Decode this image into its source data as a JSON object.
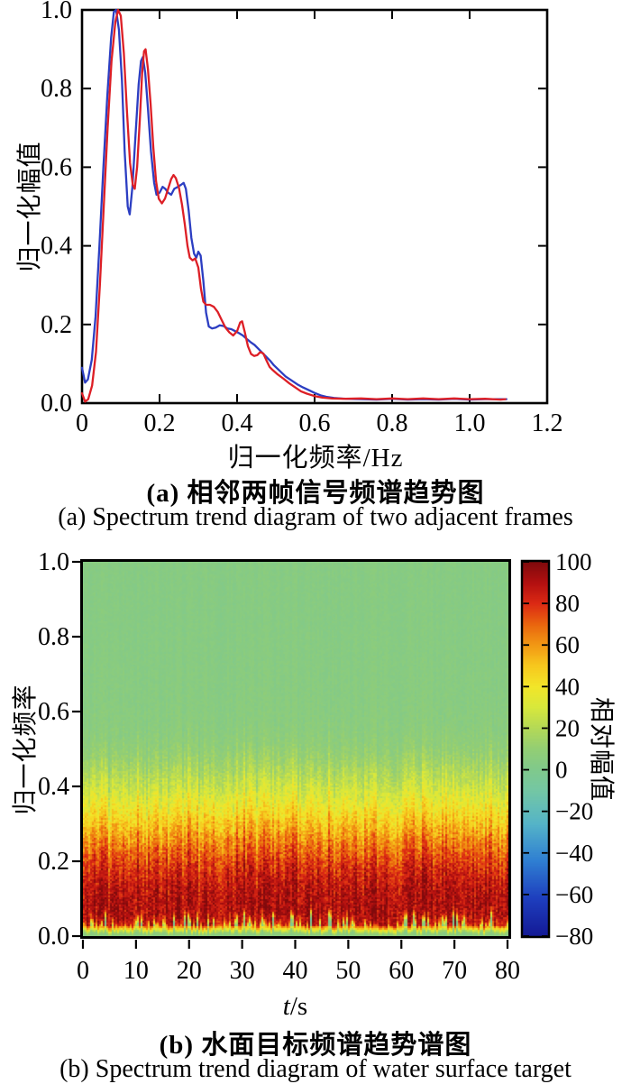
{
  "figure": {
    "background": "#ffffff",
    "caption_a_zh": "(a) 相邻两帧信号频谱趋势图",
    "caption_a_en": "(a) Spectrum trend diagram of two adjacent frames",
    "caption_b_zh": "(b) 水面目标频谱趋势谱图",
    "caption_b_en": "(b) Spectrum trend diagram of water surface target"
  },
  "chart_data": [
    {
      "id": "spectrum-trend-lines",
      "type": "line",
      "xlabel": "归一化频率/Hz",
      "ylabel": "归一化幅值",
      "xlim": [
        0,
        1.2
      ],
      "ylim": [
        0,
        1.0
      ],
      "grid": false,
      "xticks": [
        "0",
        "0.2",
        "0.4",
        "0.6",
        "0.8",
        "1.0",
        "1.2"
      ],
      "yticks": [
        "0.0",
        "0.2",
        "0.4",
        "0.6",
        "0.8",
        "1.0"
      ],
      "caption_zh": "(a) 相邻两帧信号频谱趋势图",
      "caption_en": "(a) Spectrum trend diagram of two adjacent frames",
      "series": [
        {
          "name": "frame-1-blue",
          "color": "#2c3ec2",
          "x": [
            0,
            0.008,
            0.015,
            0.025,
            0.035,
            0.045,
            0.055,
            0.065,
            0.075,
            0.082,
            0.088,
            0.095,
            0.103,
            0.11,
            0.118,
            0.123,
            0.13,
            0.138,
            0.146,
            0.152,
            0.157,
            0.163,
            0.17,
            0.178,
            0.186,
            0.192,
            0.2,
            0.208,
            0.215,
            0.222,
            0.23,
            0.238,
            0.247,
            0.255,
            0.262,
            0.268,
            0.275,
            0.282,
            0.289,
            0.295,
            0.3,
            0.306,
            0.313,
            0.32,
            0.327,
            0.335,
            0.345,
            0.355,
            0.365,
            0.375,
            0.385,
            0.395,
            0.405,
            0.415,
            0.425,
            0.435,
            0.445,
            0.455,
            0.465,
            0.475,
            0.485,
            0.495,
            0.51,
            0.525,
            0.54,
            0.555,
            0.57,
            0.585,
            0.6,
            0.615,
            0.63,
            0.65,
            0.68,
            0.72,
            0.76,
            0.8,
            0.84,
            0.88,
            0.92,
            0.96,
            1.0,
            1.04,
            1.08,
            1.095
          ],
          "y": [
            0.09,
            0.052,
            0.06,
            0.11,
            0.22,
            0.4,
            0.6,
            0.78,
            0.93,
            0.995,
            1.0,
            0.95,
            0.82,
            0.64,
            0.5,
            0.48,
            0.55,
            0.68,
            0.81,
            0.87,
            0.88,
            0.84,
            0.75,
            0.64,
            0.56,
            0.53,
            0.535,
            0.55,
            0.545,
            0.535,
            0.53,
            0.545,
            0.55,
            0.555,
            0.56,
            0.545,
            0.49,
            0.42,
            0.38,
            0.37,
            0.385,
            0.375,
            0.31,
            0.23,
            0.195,
            0.19,
            0.192,
            0.198,
            0.196,
            0.19,
            0.188,
            0.183,
            0.178,
            0.172,
            0.163,
            0.155,
            0.148,
            0.138,
            0.128,
            0.118,
            0.108,
            0.096,
            0.082,
            0.068,
            0.058,
            0.048,
            0.04,
            0.033,
            0.026,
            0.02,
            0.016,
            0.013,
            0.011,
            0.01,
            0.009,
            0.011,
            0.009,
            0.01,
            0.009,
            0.011,
            0.009,
            0.01,
            0.01,
            0.01
          ]
        },
        {
          "name": "frame-2-red",
          "color": "#dd1f26",
          "x": [
            0,
            0.008,
            0.016,
            0.026,
            0.036,
            0.046,
            0.056,
            0.066,
            0.076,
            0.086,
            0.093,
            0.1,
            0.108,
            0.116,
            0.124,
            0.131,
            0.136,
            0.142,
            0.149,
            0.155,
            0.16,
            0.164,
            0.17,
            0.177,
            0.184,
            0.191,
            0.198,
            0.206,
            0.214,
            0.222,
            0.23,
            0.236,
            0.242,
            0.25,
            0.258,
            0.265,
            0.272,
            0.278,
            0.285,
            0.292,
            0.3,
            0.307,
            0.313,
            0.32,
            0.33,
            0.34,
            0.35,
            0.36,
            0.37,
            0.38,
            0.39,
            0.4,
            0.408,
            0.413,
            0.42,
            0.428,
            0.436,
            0.444,
            0.452,
            0.46,
            0.468,
            0.476,
            0.484,
            0.492,
            0.505,
            0.52,
            0.535,
            0.55,
            0.565,
            0.58,
            0.6,
            0.62,
            0.645,
            0.68,
            0.72,
            0.76,
            0.8,
            0.84,
            0.88,
            0.92,
            0.96,
            1.0,
            1.04,
            1.08,
            1.092
          ],
          "y": [
            0.025,
            0.004,
            0.01,
            0.045,
            0.13,
            0.3,
            0.5,
            0.7,
            0.87,
            0.97,
            1.0,
            0.985,
            0.89,
            0.74,
            0.61,
            0.555,
            0.545,
            0.6,
            0.72,
            0.84,
            0.895,
            0.9,
            0.85,
            0.76,
            0.65,
            0.565,
            0.52,
            0.508,
            0.52,
            0.545,
            0.57,
            0.58,
            0.572,
            0.548,
            0.505,
            0.455,
            0.4,
            0.37,
            0.363,
            0.368,
            0.345,
            0.29,
            0.258,
            0.25,
            0.25,
            0.245,
            0.232,
            0.212,
            0.192,
            0.18,
            0.172,
            0.183,
            0.205,
            0.208,
            0.18,
            0.145,
            0.125,
            0.12,
            0.122,
            0.13,
            0.126,
            0.108,
            0.092,
            0.084,
            0.073,
            0.062,
            0.05,
            0.04,
            0.03,
            0.024,
            0.018,
            0.014,
            0.012,
            0.011,
            0.012,
            0.01,
            0.012,
            0.01,
            0.012,
            0.01,
            0.012,
            0.01,
            0.011,
            0.009,
            0.01
          ]
        }
      ]
    },
    {
      "id": "water-surface-spectrogram",
      "type": "heatmap",
      "xlabel": "t/s",
      "xlabel_italic": "t",
      "xlabel_rest": "/s",
      "ylabel": "归一化频率",
      "xlim": [
        0,
        80
      ],
      "ylim": [
        0,
        1.0
      ],
      "xticks": [
        "0",
        "10",
        "20",
        "30",
        "40",
        "50",
        "60",
        "70",
        "80"
      ],
      "yticks": [
        "0.0",
        "0.2",
        "0.4",
        "0.6",
        "0.8",
        "1.0"
      ],
      "caption_zh": "(b) 水面目标频谱趋势谱图",
      "caption_en": "(b) Spectrum trend diagram of water surface target",
      "colorbar": {
        "label": "相对幅值",
        "range": [
          -80,
          100
        ],
        "ticks": [
          "100",
          "80",
          "60",
          "40",
          "20",
          "0",
          "−20",
          "−40",
          "−60",
          "−80"
        ]
      },
      "colormap_stops": [
        [
          -80,
          "#141a96"
        ],
        [
          -62,
          "#1e3fbe"
        ],
        [
          -44,
          "#2f7fd2"
        ],
        [
          -26,
          "#55b4c8"
        ],
        [
          -10,
          "#74c7a4"
        ],
        [
          0,
          "#80c98c"
        ],
        [
          10,
          "#93ce74"
        ],
        [
          20,
          "#b4d957"
        ],
        [
          30,
          "#d8e83c"
        ],
        [
          40,
          "#f2e629"
        ],
        [
          50,
          "#f7c81e"
        ],
        [
          60,
          "#f29914"
        ],
        [
          70,
          "#ea650e"
        ],
        [
          80,
          "#dc2a14"
        ],
        [
          90,
          "#b31010"
        ],
        [
          100,
          "#7f0a0c"
        ]
      ],
      "value_profile": {
        "comment": "mean relative amplitude and noise amplitude versus normalized frequency",
        "freq": [
          0,
          0.01,
          0.018,
          0.026,
          0.034,
          0.05,
          0.08,
          0.12,
          0.16,
          0.2,
          0.24,
          0.28,
          0.32,
          0.36,
          0.4,
          0.44,
          0.48,
          0.52,
          0.56,
          0.62,
          0.7,
          0.85,
          1.0
        ],
        "base": [
          4,
          8,
          28,
          55,
          78,
          90,
          92,
          90,
          85,
          78,
          68,
          57,
          46,
          36,
          27,
          19,
          12,
          8,
          6,
          5,
          4.5,
          4,
          4
        ],
        "noise": [
          2,
          4,
          10,
          14,
          16,
          18,
          18,
          18,
          18,
          18,
          18,
          18,
          16,
          14,
          12,
          10,
          8,
          6,
          5,
          4,
          3.5,
          3,
          3
        ]
      }
    }
  ]
}
